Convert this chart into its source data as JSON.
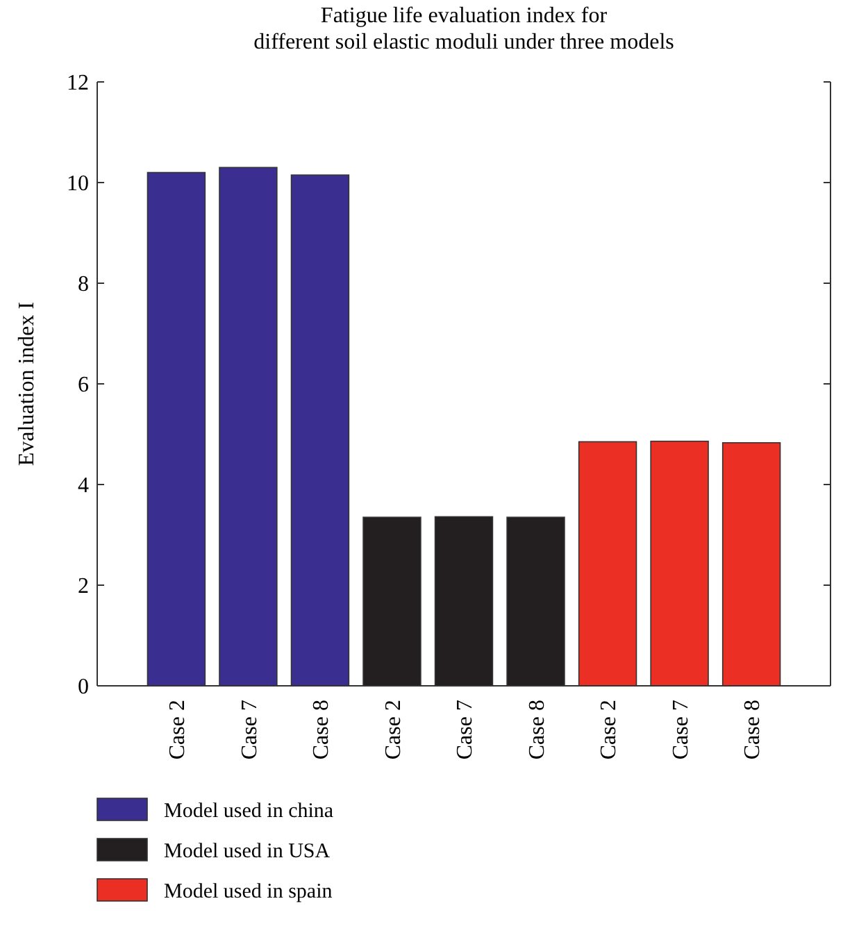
{
  "chart_data": {
    "type": "bar",
    "title": "Fatigue life evaluation index for\ndifferent soil elastic moduli under three models",
    "ylabel": "Evaluation index I",
    "categories": [
      "Case 2",
      "Case 7",
      "Case 8",
      "Case 2",
      "Case 7",
      "Case 8",
      "Case 2",
      "Case 7",
      "Case 8"
    ],
    "series": [
      {
        "name": "Model used in china",
        "color": "#3a2f91",
        "values": [
          10.2,
          10.3,
          10.15,
          null,
          null,
          null,
          null,
          null,
          null
        ]
      },
      {
        "name": "Model used in USA",
        "color": "#231f20",
        "values": [
          null,
          null,
          null,
          3.35,
          3.36,
          3.35,
          null,
          null,
          null
        ]
      },
      {
        "name": "Model used in spain",
        "color": "#ec2f24",
        "values": [
          null,
          null,
          null,
          null,
          null,
          null,
          4.85,
          4.86,
          4.83
        ]
      }
    ],
    "ylim": [
      0,
      12
    ],
    "yticks": [
      0,
      2,
      4,
      6,
      8,
      10,
      12
    ],
    "grid": false,
    "legend": "bottom left"
  }
}
